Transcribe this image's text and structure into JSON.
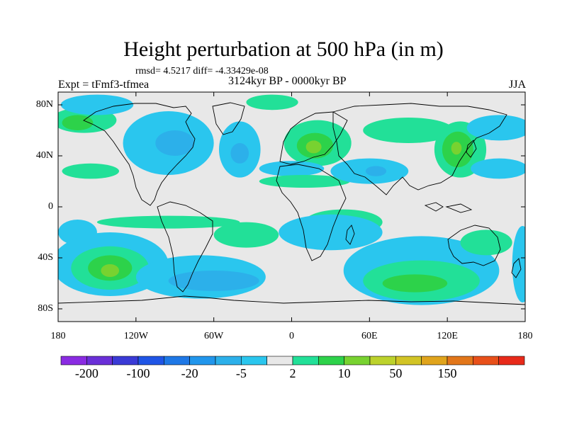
{
  "title": "Height perturbation at 500 hPa (in m)",
  "stats": "rmsd= 4.5217 diff= -4.33429e-08",
  "experiment": "Expt = tFmf3-tfmea",
  "period": "3124kyr BP - 0000kyr BP",
  "season": "JJA",
  "map": {
    "lon_range": [
      -180,
      180
    ],
    "lat_range": [
      -90,
      90
    ],
    "lon_ticks": [
      {
        "value": -180,
        "label": "180"
      },
      {
        "value": -120,
        "label": "120W"
      },
      {
        "value": -60,
        "label": "60W"
      },
      {
        "value": 0,
        "label": "0"
      },
      {
        "value": 60,
        "label": "60E"
      },
      {
        "value": 120,
        "label": "120E"
      },
      {
        "value": 180,
        "label": "180"
      }
    ],
    "lat_ticks": [
      {
        "value": 80,
        "label": "80N"
      },
      {
        "value": 40,
        "label": "40N"
      },
      {
        "value": 0,
        "label": "0"
      },
      {
        "value": -40,
        "label": "40S"
      },
      {
        "value": -80,
        "label": "80S"
      }
    ],
    "background_color": "#e8e8e8",
    "fields": [
      {
        "level": 1,
        "lon": -160,
        "lat": 68,
        "rx": 25,
        "ry": 10
      },
      {
        "level": 2,
        "lon": -165,
        "lat": 66,
        "rx": 12,
        "ry": 6
      },
      {
        "level": 1,
        "lon": -155,
        "lat": 28,
        "rx": 22,
        "ry": 6
      },
      {
        "level": -1,
        "lon": -150,
        "lat": 80,
        "rx": 28,
        "ry": 8
      },
      {
        "level": -1,
        "lon": -95,
        "lat": 50,
        "rx": 35,
        "ry": 25
      },
      {
        "level": -2,
        "lon": -90,
        "lat": 50,
        "rx": 15,
        "ry": 10
      },
      {
        "level": -1,
        "lon": -40,
        "lat": 45,
        "rx": 16,
        "ry": 22
      },
      {
        "level": -2,
        "lon": -40,
        "lat": 42,
        "rx": 7,
        "ry": 8
      },
      {
        "level": 1,
        "lon": 20,
        "lat": 50,
        "rx": 26,
        "ry": 18
      },
      {
        "level": 2,
        "lon": 18,
        "lat": 48,
        "rx": 14,
        "ry": 10
      },
      {
        "level": 3,
        "lon": 17,
        "lat": 47,
        "rx": 6,
        "ry": 5
      },
      {
        "level": -1,
        "lon": 0,
        "lat": 30,
        "rx": 25,
        "ry": 6
      },
      {
        "level": 1,
        "lon": 10,
        "lat": 20,
        "rx": 35,
        "ry": 5
      },
      {
        "level": 1,
        "lon": -15,
        "lat": 82,
        "rx": 20,
        "ry": 6
      },
      {
        "level": -1,
        "lon": 60,
        "lat": 28,
        "rx": 30,
        "ry": 10
      },
      {
        "level": -2,
        "lon": 65,
        "lat": 28,
        "rx": 8,
        "ry": 4
      },
      {
        "level": 1,
        "lon": 90,
        "lat": 60,
        "rx": 35,
        "ry": 10
      },
      {
        "level": 1,
        "lon": 130,
        "lat": 45,
        "rx": 20,
        "ry": 22
      },
      {
        "level": 2,
        "lon": 128,
        "lat": 45,
        "rx": 12,
        "ry": 14
      },
      {
        "level": 3,
        "lon": 127,
        "lat": 46,
        "rx": 4,
        "ry": 5
      },
      {
        "level": -1,
        "lon": 160,
        "lat": 62,
        "rx": 25,
        "ry": 10
      },
      {
        "level": -1,
        "lon": 160,
        "lat": 30,
        "rx": 22,
        "ry": 8
      },
      {
        "level": 1,
        "lon": 40,
        "lat": -12,
        "rx": 30,
        "ry": 10
      },
      {
        "level": 1,
        "lon": -95,
        "lat": -12,
        "rx": 55,
        "ry": 5
      },
      {
        "level": -1,
        "lon": -165,
        "lat": -20,
        "rx": 15,
        "ry": 10
      },
      {
        "level": -1,
        "lon": -140,
        "lat": -45,
        "rx": 45,
        "ry": 25
      },
      {
        "level": 1,
        "lon": -140,
        "lat": -48,
        "rx": 30,
        "ry": 17
      },
      {
        "level": 2,
        "lon": -140,
        "lat": -48,
        "rx": 17,
        "ry": 10
      },
      {
        "level": 3,
        "lon": -140,
        "lat": -50,
        "rx": 7,
        "ry": 5
      },
      {
        "level": 1,
        "lon": -35,
        "lat": -22,
        "rx": 25,
        "ry": 10
      },
      {
        "level": -1,
        "lon": -70,
        "lat": -55,
        "rx": 50,
        "ry": 17
      },
      {
        "level": -2,
        "lon": -60,
        "lat": -58,
        "rx": 35,
        "ry": 8
      },
      {
        "level": -1,
        "lon": 30,
        "lat": -20,
        "rx": 40,
        "ry": 14
      },
      {
        "level": -1,
        "lon": 100,
        "lat": -50,
        "rx": 60,
        "ry": 27
      },
      {
        "level": 1,
        "lon": 100,
        "lat": -58,
        "rx": 45,
        "ry": 16
      },
      {
        "level": 2,
        "lon": 95,
        "lat": -60,
        "rx": 25,
        "ry": 7
      },
      {
        "level": 1,
        "lon": 150,
        "lat": -28,
        "rx": 20,
        "ry": 10
      },
      {
        "level": -1,
        "lon": 178,
        "lat": -45,
        "rx": 8,
        "ry": 30
      }
    ]
  },
  "colorbar": {
    "colors": [
      "#8a2be2",
      "#6a2fd8",
      "#3a3ad6",
      "#1f55e6",
      "#1e78e6",
      "#2196ec",
      "#2cb0ea",
      "#2ac6ee",
      "#e8e8e8",
      "#22e098",
      "#2dd24a",
      "#78d230",
      "#bcd22c",
      "#d2c425",
      "#e0a41c",
      "#e2761a",
      "#e8501a",
      "#e82a1a"
    ],
    "labels": [
      {
        "boundary": 1,
        "text": "-200"
      },
      {
        "boundary": 3,
        "text": "-100"
      },
      {
        "boundary": 5,
        "text": "-20"
      },
      {
        "boundary": 7,
        "text": "-5"
      },
      {
        "boundary": 9,
        "text": "2"
      },
      {
        "boundary": 11,
        "text": "10"
      },
      {
        "boundary": 13,
        "text": "50"
      },
      {
        "boundary": 15,
        "text": "150"
      }
    ]
  }
}
